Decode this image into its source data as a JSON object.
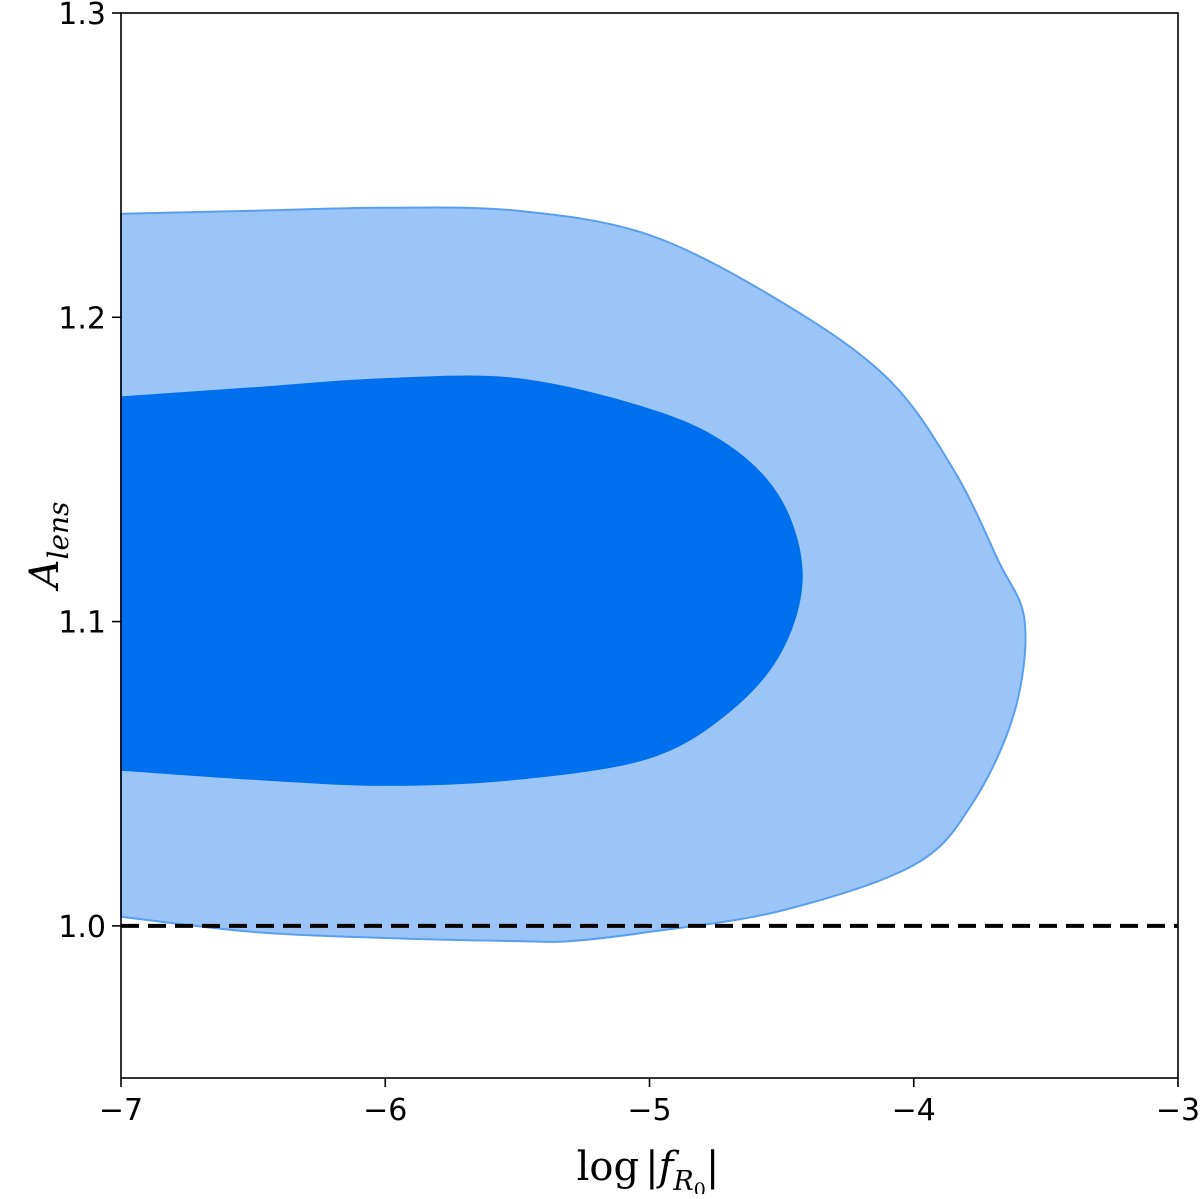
{
  "chart_data": {
    "type": "contour",
    "title": "",
    "xlabel": {
      "main": "log",
      "var": "f",
      "sub": "R",
      "subsub": "0"
    },
    "ylabel": {
      "main": "A",
      "sub": "lens"
    },
    "xlim": [
      -7,
      -3
    ],
    "ylim": [
      0.95,
      1.3
    ],
    "xticks": [
      -7,
      -6,
      -5,
      -4,
      -3
    ],
    "yticks": [
      1.0,
      1.1,
      1.2,
      1.3
    ],
    "xtick_labels": [
      "−7",
      "−6",
      "−5",
      "−4",
      "−3"
    ],
    "ytick_labels": [
      "1.0",
      "1.1",
      "1.2",
      "1.3"
    ],
    "grid": false,
    "colors": {
      "inner": "#0070EE",
      "outer": "#9CC5F7",
      "outer_edge": "#5A9FEF",
      "reference": "#000000"
    },
    "contours": [
      {
        "level": "95%",
        "fill": "#9CC5F7",
        "points": [
          [
            -7.0,
            1.234
          ],
          [
            -6.5,
            1.235
          ],
          [
            -6.0,
            1.236
          ],
          [
            -5.5,
            1.235
          ],
          [
            -5.0,
            1.227
          ],
          [
            -4.5,
            1.205
          ],
          [
            -4.1,
            1.18
          ],
          [
            -3.85,
            1.15
          ],
          [
            -3.68,
            1.12
          ],
          [
            -3.58,
            1.1
          ],
          [
            -3.62,
            1.07
          ],
          [
            -3.78,
            1.04
          ],
          [
            -4.0,
            1.02
          ],
          [
            -4.5,
            1.005
          ],
          [
            -5.0,
            0.998
          ],
          [
            -5.3,
            0.995
          ],
          [
            -5.5,
            0.995
          ],
          [
            -6.0,
            0.996
          ],
          [
            -6.5,
            0.998
          ],
          [
            -7.0,
            1.003
          ]
        ]
      },
      {
        "level": "68%",
        "fill": "#0070EE",
        "points": [
          [
            -7.0,
            1.174
          ],
          [
            -6.5,
            1.177
          ],
          [
            -6.0,
            1.18
          ],
          [
            -5.5,
            1.18
          ],
          [
            -5.0,
            1.17
          ],
          [
            -4.7,
            1.158
          ],
          [
            -4.5,
            1.14
          ],
          [
            -4.42,
            1.115
          ],
          [
            -4.5,
            1.09
          ],
          [
            -4.7,
            1.07
          ],
          [
            -5.0,
            1.055
          ],
          [
            -5.5,
            1.048
          ],
          [
            -6.0,
            1.046
          ],
          [
            -6.5,
            1.048
          ],
          [
            -7.0,
            1.051
          ]
        ]
      }
    ],
    "reference_line": {
      "y": 1.0,
      "style": "dashed",
      "color": "#000000"
    }
  }
}
